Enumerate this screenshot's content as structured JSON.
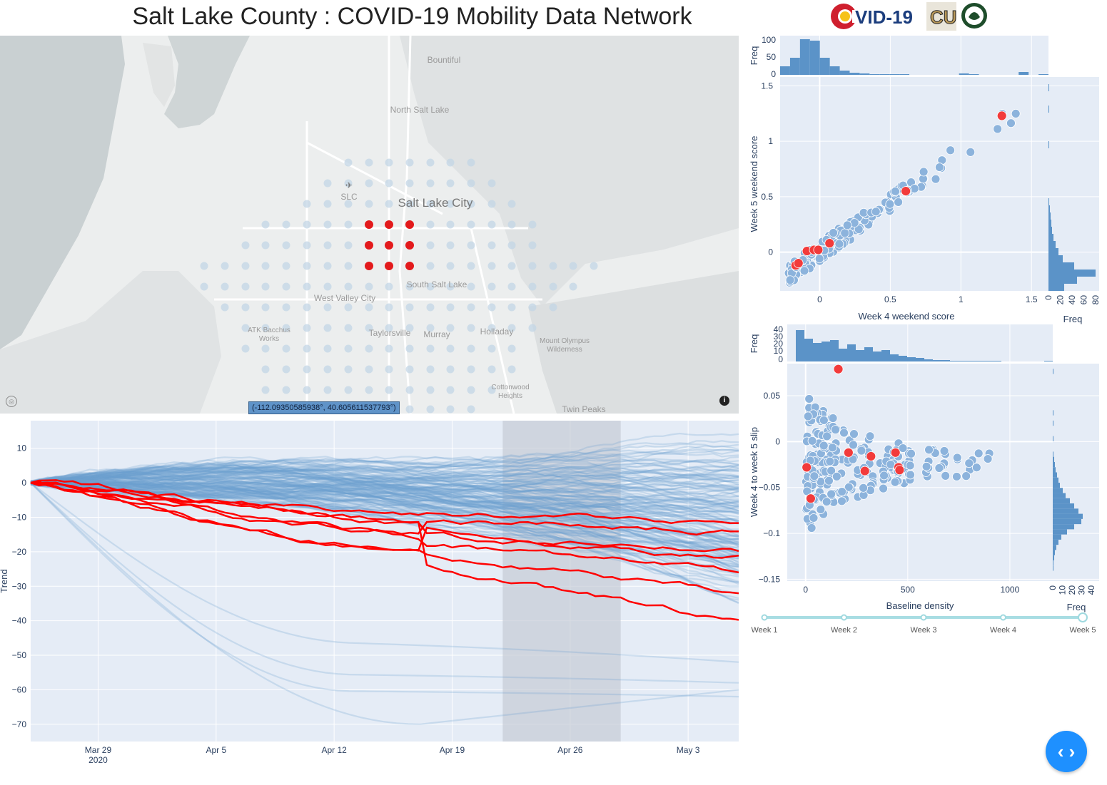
{
  "title": "Salt Lake County : COVID-19 Mobility Data Network",
  "logos": {
    "covid_text": "VID-19",
    "colors": {
      "red": "#cf1f2e",
      "gold": "#f6c21a",
      "blue": "#1b3d7d",
      "green": "#1e4d2b"
    }
  },
  "map": {
    "places": [
      {
        "label": "Bountiful"
      },
      {
        "label": "North Salt Lake"
      },
      {
        "label": "SLC"
      },
      {
        "label": "Salt Lake City"
      },
      {
        "label": "South Salt Lake"
      },
      {
        "label": "West Valley City"
      },
      {
        "label": "ATK Bacchus Works"
      },
      {
        "label": "Taylorsville"
      },
      {
        "label": "Murray"
      },
      {
        "label": "Holladay"
      },
      {
        "label": "Mount Olympus Wilderness"
      },
      {
        "label": "Cottonwood Heights"
      },
      {
        "label": "Twin Peaks"
      }
    ],
    "coordinate_readout": "(-112.09350585938°, 40.605611537793°)",
    "info_icon": "i",
    "dot_color": "#c3d5e6",
    "highlight_color": "#e31a1c"
  },
  "timeseries": {
    "ylabel": "Trend",
    "yticks": [
      "10",
      "0",
      "−10",
      "−20",
      "−30",
      "−40",
      "−50",
      "−60",
      "−70"
    ],
    "xticks": [
      "Mar 29",
      "Apr 5",
      "Apr 12",
      "Apr 19",
      "Apr 26",
      "May 3"
    ],
    "xtick_year": "2020",
    "highlight_window": {
      "start": "Apr 22",
      "end": "Apr 29"
    },
    "red_series_endpoints": [
      -11,
      -14,
      -20,
      -22,
      -26,
      -32,
      -40
    ],
    "colors": {
      "blue": "#6d9fd0",
      "red": "#ff0000",
      "band": "#d6dae1",
      "bg": "#e5ecf6"
    }
  },
  "scatter1": {
    "xlabel": "Week 4 weekend score",
    "ylabel": "Week 5 weekend score",
    "freq_label": "Freq",
    "xticks": [
      "0",
      "0.5",
      "1",
      "1.5"
    ],
    "yticks": [
      "1.5",
      "1",
      "0.5",
      "0"
    ],
    "top_hist_ticks": [
      "100",
      "50",
      "0"
    ],
    "right_hist_ticks": [
      "0",
      "20",
      "40",
      "60",
      "80"
    ],
    "highlight_points": [
      [
        -0.17,
        -0.12
      ],
      [
        -0.15,
        -0.1
      ],
      [
        -0.09,
        0.01
      ],
      [
        -0.04,
        0.02
      ],
      [
        -0.01,
        0.02
      ],
      [
        0.07,
        0.08
      ],
      [
        0.61,
        0.55
      ],
      [
        1.29,
        1.23
      ]
    ]
  },
  "scatter2": {
    "xlabel": "Baseline density",
    "ylabel": "Week 4 to week 5 slip",
    "freq_label": "Freq",
    "xticks": [
      "0",
      "500",
      "1000"
    ],
    "yticks": [
      "0.05",
      "0",
      "−0.05",
      "−0.1",
      "−0.15"
    ],
    "top_hist_ticks": [
      "40",
      "30",
      "20",
      "10",
      "0"
    ],
    "right_hist_ticks": [
      "0",
      "10",
      "20",
      "30",
      "40"
    ],
    "highlight_points": [
      [
        160,
        0.079
      ],
      [
        5,
        -0.028
      ],
      [
        25,
        -0.062
      ],
      [
        210,
        -0.012
      ],
      [
        290,
        -0.032
      ],
      [
        320,
        -0.016
      ],
      [
        440,
        -0.012
      ],
      [
        455,
        -0.028
      ],
      [
        460,
        -0.031
      ]
    ]
  },
  "slider": {
    "steps": [
      "Week 1",
      "Week 2",
      "Week 3",
      "Week 4",
      "Week 5"
    ],
    "active_index": 4
  },
  "play_button": {
    "label": "‹ ›"
  }
}
